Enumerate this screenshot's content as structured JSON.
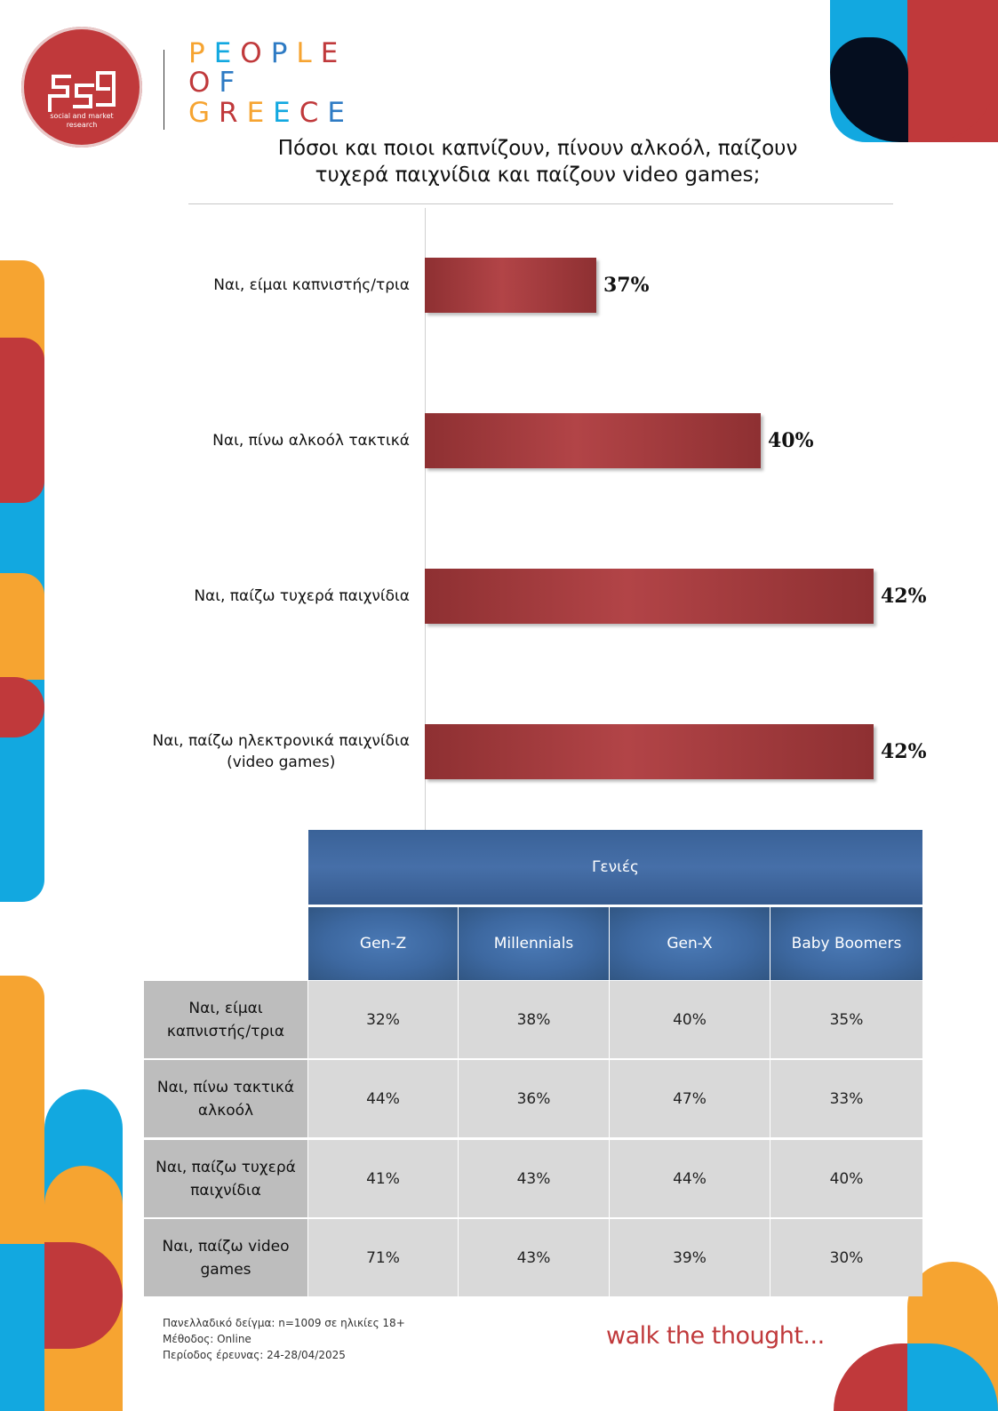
{
  "brand": {
    "logo_subtitle_1": "social and market",
    "logo_subtitle_2": "research",
    "pog_line1": "PEOPLE",
    "pog_line2": "OF",
    "pog_line3": "GREECE",
    "colors": {
      "red": "#c0393b",
      "blue": "#12a8e0",
      "orange": "#f6a431",
      "navy": "#050e1f"
    }
  },
  "title_line1": "Πόσοι και ποιοι καπνίζουν, πίνουν αλκοόλ, παίζουν",
  "title_line2": "τυχερά παιχνίδια και παίζουν video games;",
  "chart_data": {
    "type": "bar",
    "orientation": "horizontal",
    "categories": [
      "Ναι, είμαι καπνιστής/τρια",
      "Ναι, πίνω αλκοόλ τακτικά",
      "Ναι, παίζω τυχερά παιχνίδια",
      "Ναι, παίζω ηλεκτρονικά παιχνίδια (video games)"
    ],
    "category_lines": [
      [
        "Ναι, είμαι καπνιστής/τρια"
      ],
      [
        "Ναι, πίνω αλκοόλ τακτικά"
      ],
      [
        "Ναι, παίζω τυχερά παιχνίδια"
      ],
      [
        "Ναι, παίζω ηλεκτρονικά παιχνίδια",
        "(video games)"
      ]
    ],
    "values": [
      37,
      40,
      42,
      42
    ],
    "value_labels": [
      "37%",
      "40%",
      "42%",
      "42%"
    ],
    "unit": "%",
    "bar_color": "#a83c3f",
    "grid": false
  },
  "table": {
    "group_header": "Γενιές",
    "columns": [
      "Gen-Z",
      "Millennials",
      "Gen-X",
      "Baby Boomers"
    ],
    "rows": [
      {
        "label_lines": [
          "Ναι, είμαι",
          "καπνιστής/τρια"
        ],
        "values": [
          "32%",
          "38%",
          "40%",
          "35%"
        ]
      },
      {
        "label_lines": [
          "Ναι, πίνω τακτικά",
          "αλκοόλ"
        ],
        "values": [
          "44%",
          "36%",
          "47%",
          "33%"
        ]
      },
      {
        "label_lines": [
          "Ναι, παίζω τυχερά",
          "παιχνίδια"
        ],
        "values": [
          "41%",
          "43%",
          "44%",
          "40%"
        ]
      },
      {
        "label_lines": [
          "Ναι, παίζω video",
          "games"
        ],
        "values": [
          "71%",
          "43%",
          "39%",
          "30%"
        ]
      }
    ]
  },
  "footer": {
    "sample": "Πανελλαδικό δείγμα: n=1009 σε ηλικίες 18+",
    "method": "Μέθοδος: Online",
    "period": "Περίοδος έρευνας: 24-28/04/2025",
    "tagline": "walk the thought..."
  }
}
